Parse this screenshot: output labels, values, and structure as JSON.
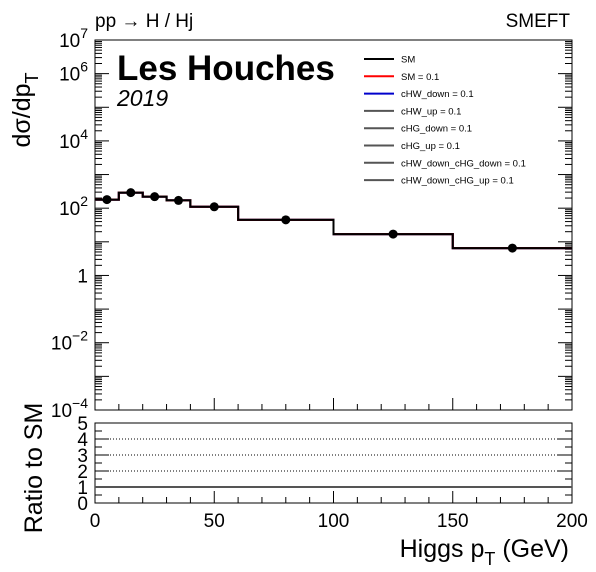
{
  "chart_data": [
    {
      "type": "line",
      "panel": "main",
      "header_left": "pp → H / Hj",
      "header_right": "SMEFT",
      "watermark_title": "Les Houches",
      "watermark_year": "2019",
      "ylabel_main": "dσ/dp",
      "ylabel_sub": "T",
      "yscale": "log",
      "ylim": [
        0.0001,
        10000000
      ],
      "xlim": [
        0,
        200
      ],
      "y_ticks": [
        {
          "value": 0.0001,
          "base": "10",
          "exp": "−4"
        },
        {
          "value": 0.01,
          "base": "10",
          "exp": "−2"
        },
        {
          "value": 1,
          "base": "1",
          "exp": ""
        },
        {
          "value": 100,
          "base": "10",
          "exp": "2"
        },
        {
          "value": 10000,
          "base": "10",
          "exp": "4"
        },
        {
          "value": 1000000,
          "base": "10",
          "exp": "6"
        },
        {
          "value": 10000000,
          "base": "10",
          "exp": "7"
        }
      ],
      "bin_edges": [
        0,
        10,
        20,
        30,
        40,
        60,
        100,
        150,
        200
      ],
      "series": [
        {
          "name": "SM",
          "color": "#000000",
          "values": [
            180,
            290,
            220,
            170,
            110,
            45,
            17,
            6.5
          ]
        },
        {
          "name": "SM = 0.1",
          "color": "#ff0000",
          "values": [
            180,
            290,
            220,
            170,
            110,
            45,
            17,
            6.5
          ]
        },
        {
          "name": "cHW_down = 0.1",
          "color": "#0000cc",
          "values": [
            180,
            290,
            220,
            170,
            110,
            45,
            17,
            6.5
          ]
        },
        {
          "name": "cHW_up = 0.1",
          "color": "#555555",
          "values": [
            180,
            290,
            220,
            170,
            110,
            45,
            17,
            6.5
          ]
        },
        {
          "name": "cHG_down = 0.1",
          "color": "#555555",
          "values": [
            180,
            290,
            220,
            170,
            110,
            45,
            17,
            6.5
          ]
        },
        {
          "name": "cHG_up = 0.1",
          "color": "#555555",
          "values": [
            180,
            290,
            220,
            170,
            110,
            45,
            17,
            6.5
          ]
        },
        {
          "name": "cHW_down_cHG_down = 0.1",
          "color": "#555555",
          "values": [
            180,
            290,
            220,
            170,
            110,
            45,
            17,
            6.5
          ]
        },
        {
          "name": "cHW_down_cHG_up = 0.1",
          "color": "#555555",
          "values": [
            180,
            290,
            220,
            170,
            110,
            45,
            17,
            6.5
          ]
        }
      ],
      "points": {
        "name": "data",
        "x": [
          5,
          15,
          25,
          35,
          50,
          80,
          125,
          175
        ],
        "y": [
          180,
          290,
          220,
          170,
          110,
          45,
          17,
          6.5
        ]
      }
    },
    {
      "type": "line",
      "panel": "ratio",
      "ylabel": "Ratio to SM",
      "xlabel_main": "Higgs p",
      "xlabel_sub": "T",
      "xlabel_unit": " (GeV)",
      "xlim": [
        0,
        200
      ],
      "ylim": [
        0,
        5
      ],
      "x_ticks": [
        "0",
        "50",
        "100",
        "150",
        "200"
      ],
      "y_ticks": [
        "0",
        "1",
        "2",
        "3",
        "4",
        "5"
      ],
      "dotted_grid_at": [
        2,
        3,
        4
      ],
      "ratio_value": 1
    }
  ]
}
